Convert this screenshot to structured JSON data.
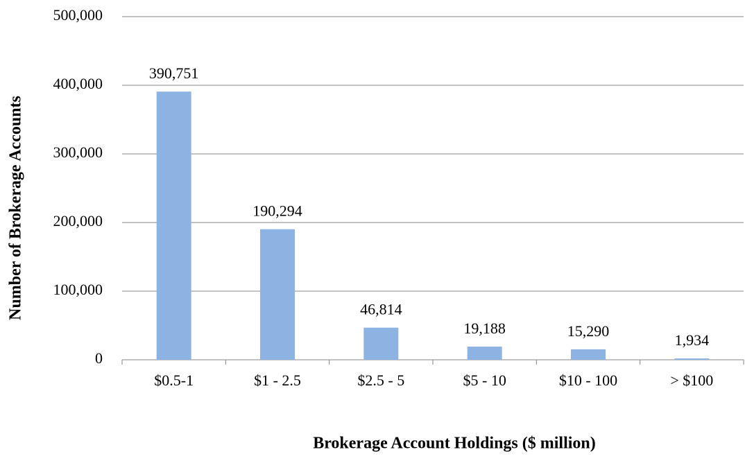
{
  "chart_data": {
    "type": "bar",
    "xlabel": "Brokerage Account Holdings ($ million)",
    "ylabel": "Number of Brokerage Accounts",
    "categories": [
      "$0.5-1",
      "$1 - 2.5",
      "$2.5 - 5",
      "$5 - 10",
      "$10 - 100",
      "> $100"
    ],
    "values": [
      390751,
      190294,
      46814,
      19188,
      15290,
      1934
    ],
    "value_labels": [
      "390,751",
      "190,294",
      "46,814",
      "19,188",
      "15,290",
      "1,934"
    ],
    "color": "#8db3e2",
    "ylim": [
      0,
      500000
    ],
    "yticks": [
      0,
      {
        "value": 100000,
        "label": "100,000"
      },
      {
        "value": 200000,
        "label": "200,000"
      },
      {
        "value": 300000,
        "label": "300,000"
      },
      {
        "value": 400000,
        "label": "400,000"
      },
      {
        "value": 500000,
        "label": "500,000"
      }
    ],
    "grid": true
  }
}
